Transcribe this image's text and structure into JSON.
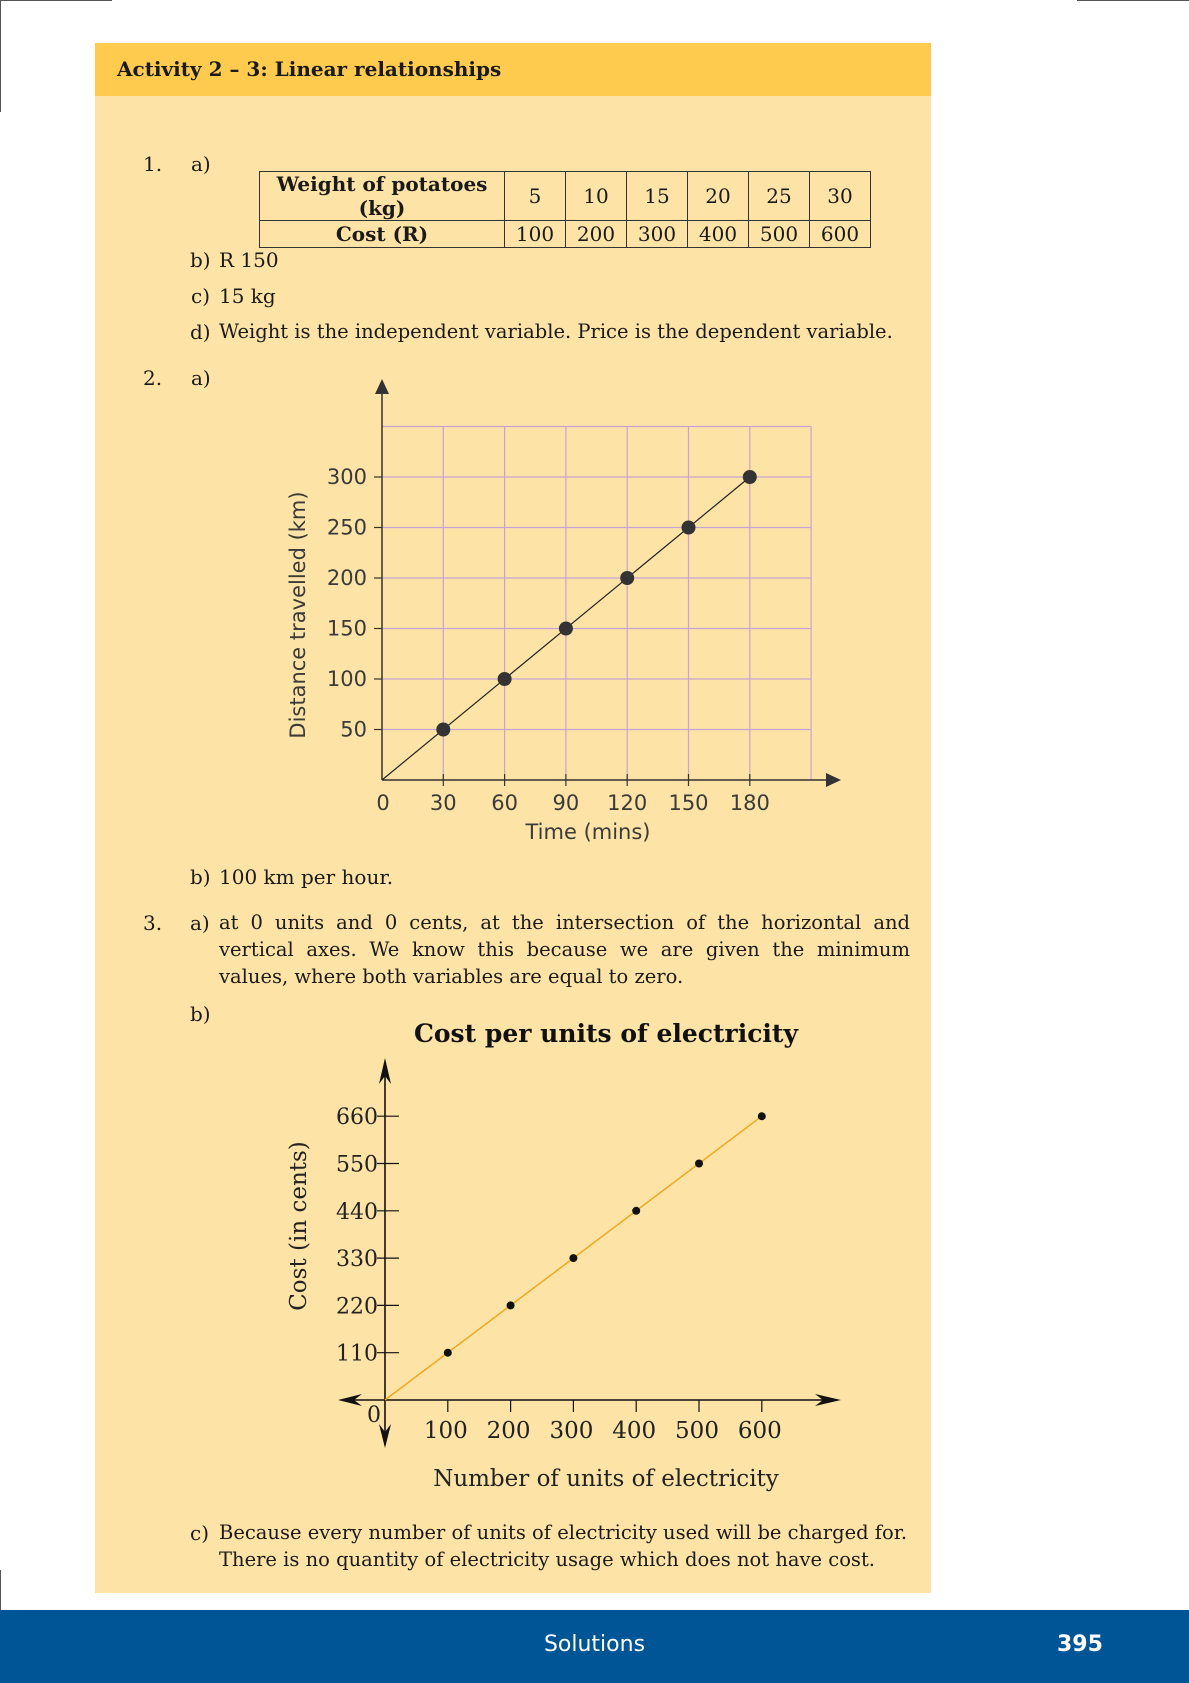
{
  "header": {
    "title": "Activity 2 – 3: Linear relationships"
  },
  "q1": {
    "number": "1.",
    "a_label": "a)",
    "table": {
      "row1_label": "Weight of potatoes (kg)",
      "row2_label": "Cost (R)",
      "weights": [
        "5",
        "10",
        "15",
        "20",
        "25",
        "30"
      ],
      "costs": [
        "100",
        "200",
        "300",
        "400",
        "500",
        "600"
      ]
    },
    "b_label": "b)",
    "b_text": "R 150",
    "c_label": "c)",
    "c_text": "15 kg",
    "d_label": "d)",
    "d_text": "Weight is the independent variable. Price is the dependent variable."
  },
  "q2": {
    "number": "2.",
    "a_label": "a)",
    "b_label": "b)",
    "b_text": "100 km per hour."
  },
  "q3": {
    "number": "3.",
    "a_label": "a)",
    "a_text": "at 0 units and 0 cents, at the intersection of the horizontal and vertical axes. We know this because we are given the minimum values, where both variables are equal to zero.",
    "b_label": "b)",
    "c_label": "c)",
    "c_text": "Because every number of units of electricity used will be charged for. There is no quantity of electricity usage which does not have cost."
  },
  "chart_data": [
    {
      "type": "line",
      "title": "",
      "xlabel": "Time (mins)",
      "ylabel": "Distance travelled (km)",
      "x_ticks": [
        "0",
        "30",
        "60",
        "90",
        "120",
        "150",
        "180"
      ],
      "y_ticks": [
        "50",
        "100",
        "150",
        "200",
        "250",
        "300"
      ],
      "x": [
        30,
        60,
        90,
        120,
        150,
        180
      ],
      "series": [
        {
          "values": [
            50,
            100,
            150,
            200,
            250,
            300
          ]
        }
      ],
      "xlim": [
        0,
        210
      ],
      "ylim": [
        0,
        350
      ],
      "grid": true,
      "grid_color": "#c9a3d4",
      "line_color": "#222222",
      "marker_color": "#333333"
    },
    {
      "type": "line",
      "title": "Cost per units of electricity",
      "xlabel": "Number of units of electricity",
      "ylabel": "Cost (in cents)",
      "origin_label": "0",
      "x_ticks": [
        "100",
        "200",
        "300",
        "400",
        "500",
        "600"
      ],
      "y_ticks": [
        "110",
        "220",
        "330",
        "440",
        "550",
        "660"
      ],
      "x": [
        100,
        200,
        300,
        400,
        500,
        600
      ],
      "series": [
        {
          "values": [
            110,
            220,
            330,
            440,
            550,
            660
          ]
        }
      ],
      "xlim": [
        0,
        720
      ],
      "ylim": [
        0,
        780
      ],
      "grid": false,
      "line_color": "#f0a81e",
      "marker_color": "#111111"
    }
  ],
  "footer": {
    "label": "Solutions",
    "page": "395"
  }
}
